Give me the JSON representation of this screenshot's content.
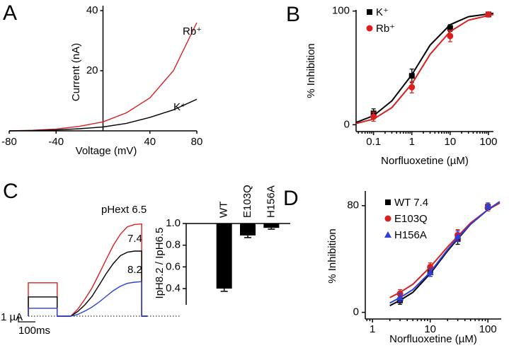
{
  "chart_data": [
    {
      "type": "line",
      "panel": "A",
      "x_label": "Voltage (mV)",
      "y_label": "Current (nA)",
      "x": [
        -80,
        -60,
        -40,
        -20,
        0,
        20,
        40,
        60,
        80
      ],
      "series": [
        {
          "name": "Rb⁺",
          "color": "#d8201f",
          "values": [
            0,
            0.2,
            0.6,
            1.5,
            3,
            6,
            11,
            20,
            36
          ]
        },
        {
          "name": "K⁺",
          "color": "#000000",
          "values": [
            0,
            0.1,
            0.3,
            0.7,
            1.3,
            2.5,
            4.5,
            7,
            10.5
          ]
        }
      ],
      "xlim": [
        -80,
        80
      ],
      "ylim": [
        0,
        40
      ],
      "xticks": [
        -80,
        -40,
        40,
        80
      ],
      "yticks": [
        20,
        40
      ]
    },
    {
      "type": "scatter",
      "panel": "B",
      "x_label": "Norfluoxetine (µM)",
      "y_label": "% Inhibition",
      "log_x": true,
      "legend": "upper left",
      "series": [
        {
          "name": "K⁺",
          "color": "#000000",
          "marker": "square",
          "x": [
            0.1,
            1,
            10,
            100
          ],
          "values": [
            10,
            43,
            85,
            97
          ],
          "errors": [
            4,
            6,
            3,
            1
          ],
          "fit_x": [
            0.035,
            0.1,
            0.3,
            1,
            3,
            10,
            30,
            135
          ],
          "fit_values": [
            2,
            8,
            21,
            44,
            70,
            88,
            95,
            98
          ]
        },
        {
          "name": "Rb⁺",
          "color": "#d8201f",
          "marker": "circle",
          "x": [
            0.1,
            1,
            10,
            100
          ],
          "values": [
            7,
            33,
            78,
            97
          ],
          "errors": [
            4,
            5,
            5,
            1
          ],
          "fit_x": [
            0.035,
            0.1,
            0.3,
            1,
            3,
            10,
            30,
            135
          ],
          "fit_values": [
            1,
            5,
            15,
            36,
            62,
            82,
            92,
            97
          ]
        }
      ],
      "xlim": [
        0.035,
        135
      ],
      "ylim": [
        -6,
        101
      ],
      "xticks": [
        0.1,
        1,
        10,
        100
      ],
      "yticks": [
        0,
        100
      ]
    },
    {
      "type": "line",
      "panel": "C",
      "x": [
        0,
        0,
        170,
        170,
        250,
        290,
        333,
        375,
        417,
        458,
        500,
        542,
        583,
        625,
        667,
        667,
        700
      ],
      "series": [
        {
          "name": "pHext 6.5",
          "color": "#d8201f",
          "values": [
            0,
            5.9,
            5.9,
            0,
            0,
            1.2,
            3,
            5,
            7.5,
            10,
            12.5,
            14.5,
            15.8,
            16.2,
            16.3,
            0,
            0
          ]
        },
        {
          "name": "7.4",
          "color": "#000000",
          "values": [
            0,
            3.4,
            3.4,
            0,
            0,
            0.8,
            2,
            3.5,
            5.5,
            7.5,
            9.3,
            10.7,
            11.3,
            11.5,
            11.5,
            0,
            0
          ]
        },
        {
          "name": "8.2",
          "color": "#2c3fd6",
          "values": [
            0,
            1.4,
            1.4,
            0,
            0,
            0.3,
            0.9,
            1.6,
            2.5,
            3.5,
            4.5,
            5.3,
            5.8,
            6.0,
            6.1,
            0,
            0
          ]
        }
      ],
      "xlim": [
        0,
        700
      ],
      "ylim": [
        0,
        20
      ],
      "scale_bar": {
        "x": 100,
        "x_label": "100ms",
        "y": 1,
        "y_label": "1 µA"
      }
    },
    {
      "type": "bar",
      "y_label": "IpH8.2 / IpH6.5",
      "color": "#000000",
      "categories": [
        "WT",
        "E103Q",
        "H156A"
      ],
      "values": [
        0.4,
        0.89,
        0.96
      ],
      "errors": [
        0.025,
        0.02,
        0.012
      ],
      "ylim": [
        0.25,
        1.0
      ],
      "yticks": [
        {
          "value": 0.4,
          "label": "0.4"
        },
        {
          "value": 0.6,
          "label": "0.6"
        },
        {
          "value": 0.8,
          "label": "0.8"
        },
        {
          "value": 1.0,
          "label": "1.0"
        }
      ]
    },
    {
      "type": "scatter",
      "panel": "D",
      "x_label": "Norfluoxetine (µM)",
      "y_label": "% Inhibition",
      "log_x": true,
      "legend": "upper left",
      "series": [
        {
          "name": "WT 7.4",
          "color": "#000000",
          "marker": "square",
          "x": [
            3,
            10,
            30,
            100
          ],
          "values": [
            9,
            30,
            55,
            79
          ],
          "errors": [
            3,
            3,
            4,
            2
          ],
          "fit_x": [
            2,
            3,
            5,
            10,
            20,
            30,
            50,
            100,
            160
          ],
          "fit_values": [
            5,
            9,
            15,
            29,
            46,
            55,
            66,
            77,
            82
          ]
        },
        {
          "name": "E103Q",
          "color": "#d8201f",
          "marker": "circle",
          "x": [
            3,
            10,
            30,
            100
          ],
          "values": [
            14,
            34,
            58,
            79
          ],
          "errors": [
            3,
            3,
            4,
            3
          ],
          "fit_x": [
            2,
            3,
            5,
            10,
            20,
            30,
            50,
            100,
            160
          ],
          "fit_values": [
            11,
            15,
            21,
            34,
            49,
            57,
            67,
            77,
            82
          ]
        },
        {
          "name": "H156A",
          "color": "#2c3fd6",
          "marker": "triangle",
          "x": [
            3,
            10,
            30,
            100
          ],
          "values": [
            11,
            30,
            57,
            80
          ],
          "errors": [
            3,
            3,
            4,
            2
          ],
          "fit_x": [
            2,
            3,
            5,
            10,
            20,
            30,
            50,
            100,
            160
          ],
          "fit_values": [
            7,
            11,
            17,
            30,
            47,
            56,
            66,
            77,
            83
          ]
        }
      ],
      "xlim": [
        0.75,
        170
      ],
      "ylim": [
        -5,
        91
      ],
      "xticks": [
        1,
        10,
        100
      ],
      "yticks": [
        0,
        80
      ]
    }
  ]
}
